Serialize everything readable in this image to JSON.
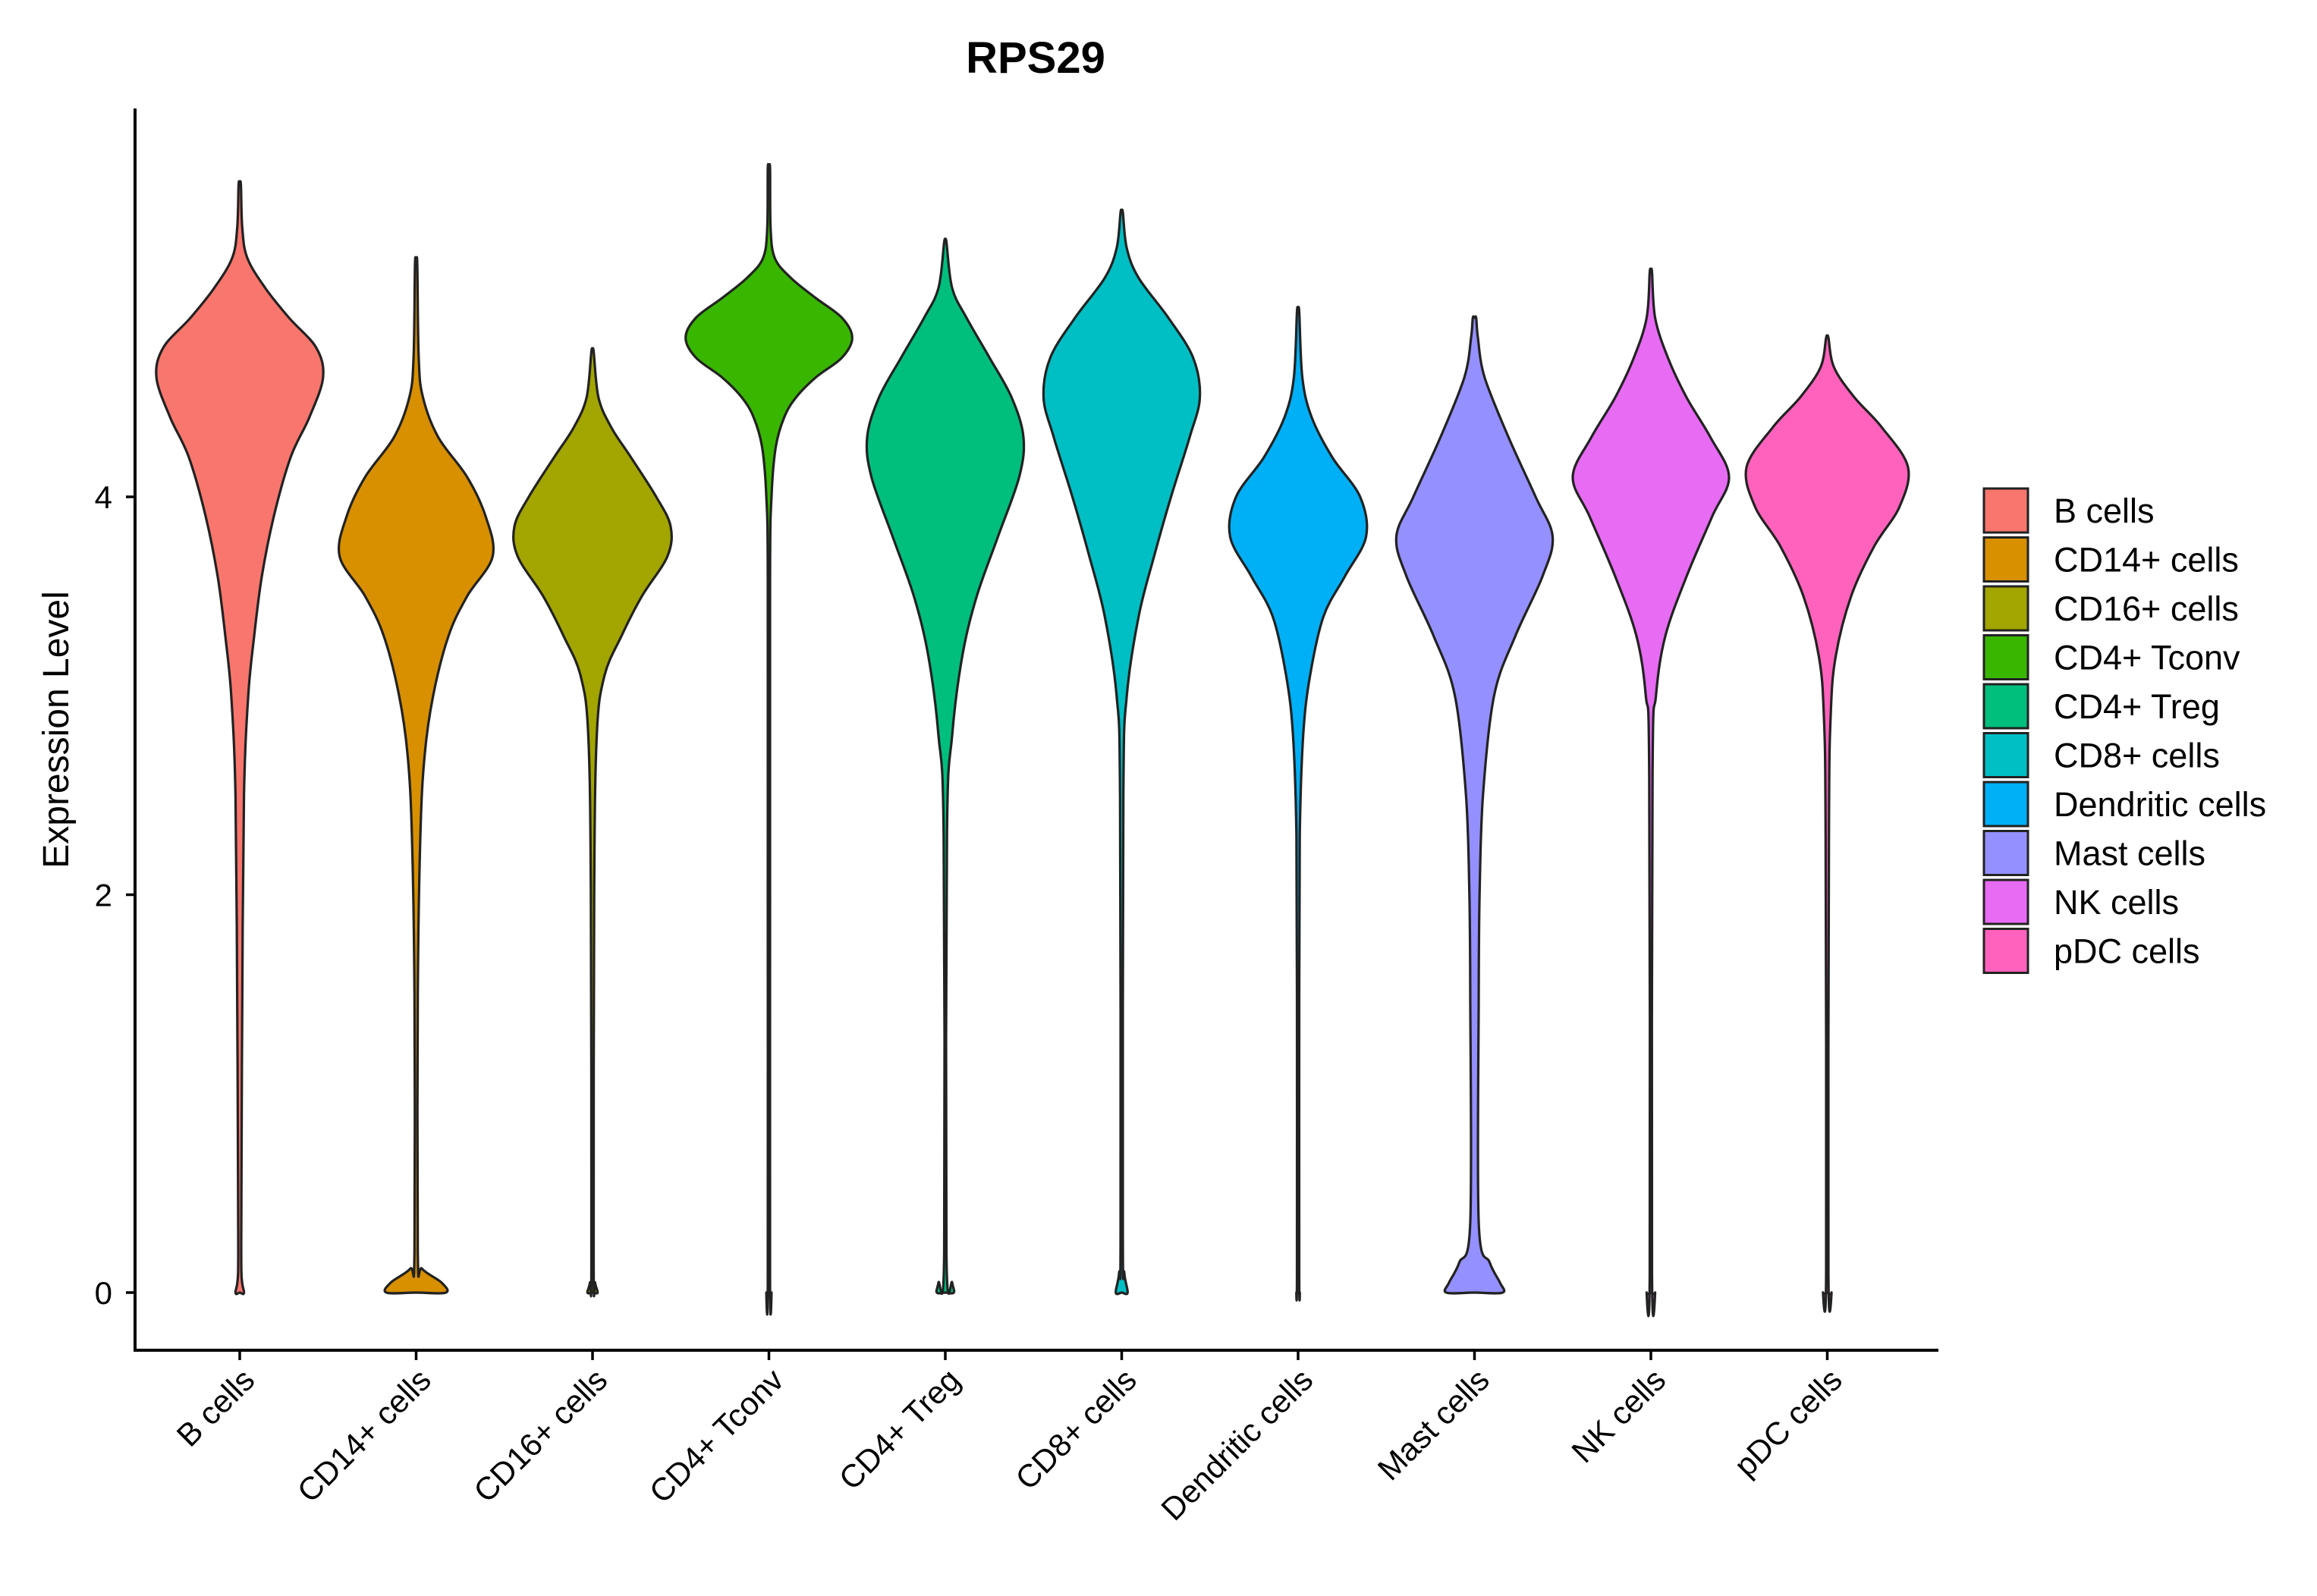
{
  "chart_data": {
    "type": "violin",
    "title": "RPS29",
    "xlabel": "",
    "ylabel": "Expression Level",
    "ylim": [
      -0.28,
      5.95
    ],
    "yticks": [
      0,
      2,
      4
    ],
    "categories": [
      "B cells",
      "CD14+ cells",
      "CD16+ cells",
      "CD4+ Tconv",
      "CD4+ Treg",
      "CD8+ cells",
      "Dendritic cells",
      "Mast cells",
      "NK cells",
      "pDC cells"
    ],
    "colors": [
      "#F8766D",
      "#D89000",
      "#A3A500",
      "#39B600",
      "#00BF7D",
      "#00BFC4",
      "#00B0F6",
      "#9590FF",
      "#E76BF3",
      "#FF62BC"
    ],
    "series": [
      {
        "name": "B cells",
        "min": 0,
        "max": 5.57,
        "density": [
          [
            0,
            0.05
          ],
          [
            0.1,
            0.02
          ],
          [
            0.5,
            0.02
          ],
          [
            1.5,
            0.03
          ],
          [
            2.5,
            0.05
          ],
          [
            3.0,
            0.1
          ],
          [
            3.3,
            0.17
          ],
          [
            3.6,
            0.26
          ],
          [
            3.9,
            0.4
          ],
          [
            4.2,
            0.6
          ],
          [
            4.4,
            0.82
          ],
          [
            4.6,
            0.98
          ],
          [
            4.75,
            0.9
          ],
          [
            4.9,
            0.58
          ],
          [
            5.05,
            0.3
          ],
          [
            5.2,
            0.09
          ],
          [
            5.35,
            0.03
          ],
          [
            5.57,
            0.01
          ]
        ]
      },
      {
        "name": "CD14+ cells",
        "min": 0,
        "max": 5.17,
        "density": [
          [
            0,
            0.35
          ],
          [
            0.05,
            0.3
          ],
          [
            0.12,
            0.07
          ],
          [
            0.2,
            0.02
          ],
          [
            1.5,
            0.02
          ],
          [
            2.3,
            0.05
          ],
          [
            2.7,
            0.1
          ],
          [
            3.0,
            0.2
          ],
          [
            3.3,
            0.38
          ],
          [
            3.5,
            0.6
          ],
          [
            3.7,
            0.9
          ],
          [
            3.9,
            0.82
          ],
          [
            4.1,
            0.6
          ],
          [
            4.3,
            0.26
          ],
          [
            4.5,
            0.08
          ],
          [
            4.7,
            0.03
          ],
          [
            5.17,
            0.01
          ]
        ]
      },
      {
        "name": "CD16+ cells",
        "min": 0,
        "max": 4.73,
        "density": [
          [
            0,
            0.06
          ],
          [
            0.05,
            0.03
          ],
          [
            0.15,
            0.01
          ],
          [
            2.0,
            0.02
          ],
          [
            2.8,
            0.05
          ],
          [
            3.1,
            0.14
          ],
          [
            3.3,
            0.34
          ],
          [
            3.5,
            0.58
          ],
          [
            3.7,
            0.88
          ],
          [
            3.85,
            0.92
          ],
          [
            4.0,
            0.75
          ],
          [
            4.2,
            0.45
          ],
          [
            4.35,
            0.22
          ],
          [
            4.5,
            0.07
          ],
          [
            4.73,
            0.01
          ]
        ]
      },
      {
        "name": "CD4+ Tconv",
        "min": 0,
        "max": 5.65,
        "density": [
          [
            0,
            0.03
          ],
          [
            0.05,
            0.01
          ],
          [
            2.0,
            0.01
          ],
          [
            3.6,
            0.01
          ],
          [
            4.0,
            0.03
          ],
          [
            4.25,
            0.08
          ],
          [
            4.4,
            0.18
          ],
          [
            4.5,
            0.32
          ],
          [
            4.6,
            0.55
          ],
          [
            4.7,
            0.86
          ],
          [
            4.8,
            0.98
          ],
          [
            4.9,
            0.86
          ],
          [
            5.0,
            0.55
          ],
          [
            5.1,
            0.26
          ],
          [
            5.2,
            0.07
          ],
          [
            5.35,
            0.02
          ],
          [
            5.65,
            0.01
          ]
        ]
      },
      {
        "name": "CD4+ Treg",
        "min": 0,
        "max": 5.28,
        "density": [
          [
            0,
            0.1
          ],
          [
            0.05,
            0.08
          ],
          [
            0.2,
            0.01
          ],
          [
            2.3,
            0.02
          ],
          [
            2.8,
            0.08
          ],
          [
            3.2,
            0.2
          ],
          [
            3.5,
            0.37
          ],
          [
            3.8,
            0.62
          ],
          [
            4.1,
            0.87
          ],
          [
            4.3,
            0.92
          ],
          [
            4.5,
            0.78
          ],
          [
            4.7,
            0.52
          ],
          [
            4.9,
            0.25
          ],
          [
            5.05,
            0.08
          ],
          [
            5.28,
            0.01
          ]
        ]
      },
      {
        "name": "CD8+ cells",
        "min": 0,
        "max": 5.43,
        "density": [
          [
            0,
            0.07
          ],
          [
            0.1,
            0.03
          ],
          [
            0.3,
            0.01
          ],
          [
            2.5,
            0.02
          ],
          [
            3.0,
            0.06
          ],
          [
            3.4,
            0.2
          ],
          [
            3.7,
            0.38
          ],
          [
            4.0,
            0.58
          ],
          [
            4.3,
            0.8
          ],
          [
            4.5,
            0.92
          ],
          [
            4.7,
            0.84
          ],
          [
            4.9,
            0.55
          ],
          [
            5.1,
            0.2
          ],
          [
            5.25,
            0.06
          ],
          [
            5.43,
            0.01
          ]
        ]
      },
      {
        "name": "Dendritic cells",
        "min": 0,
        "max": 4.93,
        "density": [
          [
            0,
            0.02
          ],
          [
            0.1,
            0.01
          ],
          [
            1.5,
            0.01
          ],
          [
            2.3,
            0.02
          ],
          [
            2.8,
            0.06
          ],
          [
            3.1,
            0.14
          ],
          [
            3.4,
            0.3
          ],
          [
            3.6,
            0.55
          ],
          [
            3.8,
            0.8
          ],
          [
            4.0,
            0.73
          ],
          [
            4.2,
            0.4
          ],
          [
            4.4,
            0.16
          ],
          [
            4.6,
            0.05
          ],
          [
            4.93,
            0.01
          ]
        ]
      },
      {
        "name": "Mast cells",
        "min": 0,
        "max": 4.9,
        "density": [
          [
            0,
            0.33
          ],
          [
            0.05,
            0.3
          ],
          [
            0.15,
            0.18
          ],
          [
            0.35,
            0.05
          ],
          [
            1.5,
            0.05
          ],
          [
            2.0,
            0.06
          ],
          [
            2.5,
            0.1
          ],
          [
            3.0,
            0.23
          ],
          [
            3.3,
            0.48
          ],
          [
            3.6,
            0.8
          ],
          [
            3.8,
            0.92
          ],
          [
            4.0,
            0.72
          ],
          [
            4.3,
            0.4
          ],
          [
            4.6,
            0.12
          ],
          [
            4.8,
            0.04
          ],
          [
            4.9,
            0.02
          ]
        ]
      },
      {
        "name": "NK cells",
        "min": 0,
        "max": 5.13,
        "density": [
          [
            0,
            0.05
          ],
          [
            0.1,
            0.01
          ],
          [
            2.6,
            0.02
          ],
          [
            3.0,
            0.06
          ],
          [
            3.3,
            0.17
          ],
          [
            3.6,
            0.42
          ],
          [
            3.9,
            0.72
          ],
          [
            4.1,
            0.92
          ],
          [
            4.3,
            0.7
          ],
          [
            4.5,
            0.42
          ],
          [
            4.7,
            0.2
          ],
          [
            4.9,
            0.05
          ],
          [
            5.13,
            0.01
          ]
        ]
      },
      {
        "name": "pDC cells",
        "min": 0,
        "max": 4.8,
        "density": [
          [
            0,
            0.05
          ],
          [
            0.1,
            0.01
          ],
          [
            2.3,
            0.02
          ],
          [
            2.9,
            0.04
          ],
          [
            3.2,
            0.1
          ],
          [
            3.5,
            0.28
          ],
          [
            3.75,
            0.55
          ],
          [
            3.95,
            0.85
          ],
          [
            4.15,
            0.95
          ],
          [
            4.35,
            0.64
          ],
          [
            4.5,
            0.32
          ],
          [
            4.65,
            0.08
          ],
          [
            4.8,
            0.01
          ]
        ]
      }
    ],
    "legend": {
      "position": "right"
    }
  }
}
